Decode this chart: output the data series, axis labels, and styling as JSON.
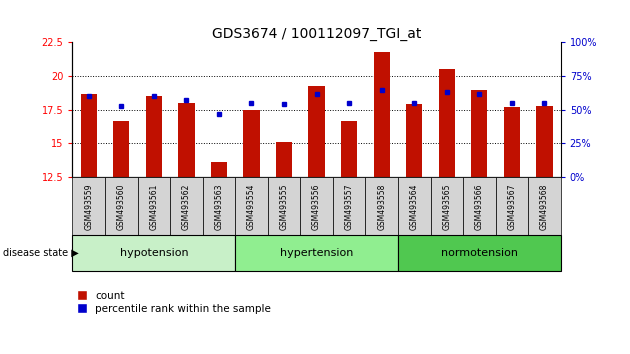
{
  "title": "GDS3674 / 100112097_TGI_at",
  "samples": [
    "GSM493559",
    "GSM493560",
    "GSM493561",
    "GSM493562",
    "GSM493563",
    "GSM493554",
    "GSM493555",
    "GSM493556",
    "GSM493557",
    "GSM493558",
    "GSM493564",
    "GSM493565",
    "GSM493566",
    "GSM493567",
    "GSM493568"
  ],
  "count_values": [
    18.7,
    16.7,
    18.5,
    18.0,
    13.6,
    17.5,
    15.1,
    19.3,
    16.7,
    21.8,
    17.9,
    20.5,
    19.0,
    17.7,
    17.8
  ],
  "percentile_values": [
    60,
    53,
    60,
    57,
    47,
    55,
    54,
    62,
    55,
    65,
    55,
    63,
    62,
    55,
    55
  ],
  "groups": [
    {
      "label": "hypotension",
      "start": 0,
      "end": 5,
      "color": "#c8f0c8"
    },
    {
      "label": "hypertension",
      "start": 5,
      "end": 10,
      "color": "#90ee90"
    },
    {
      "label": "normotension",
      "start": 10,
      "end": 15,
      "color": "#50c850"
    }
  ],
  "ylim_left": [
    12.5,
    22.5
  ],
  "ylim_right": [
    0,
    100
  ],
  "yticks_left": [
    12.5,
    15.0,
    17.5,
    20.0,
    22.5
  ],
  "yticks_right": [
    0,
    25,
    50,
    75,
    100
  ],
  "bar_color": "#c01000",
  "percentile_color": "#0000cc",
  "label_count": "count",
  "label_percentile": "percentile rank within the sample",
  "disease_state_label": "disease state",
  "bar_bottom": 12.5,
  "title_fontsize": 10,
  "tick_fontsize": 7,
  "group_fontsize": 8,
  "sample_fontsize": 5.5
}
